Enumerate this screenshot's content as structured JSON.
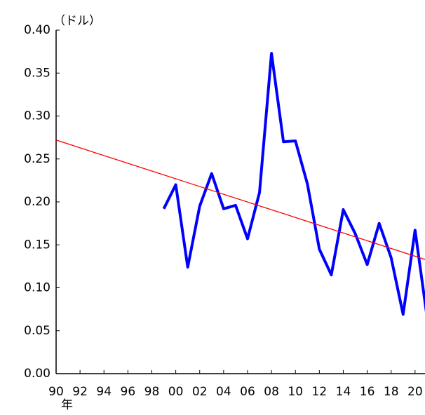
{
  "chart_data": {
    "type": "line",
    "y_unit": "（ドル）",
    "x_unit": "年",
    "xlim": [
      1990,
      2020.83
    ],
    "ylim": [
      0,
      0.4
    ],
    "yticks": [
      {
        "value": 0,
        "label": "0.00"
      },
      {
        "value": 0.05,
        "label": "0.05"
      },
      {
        "value": 0.1,
        "label": "0.10"
      },
      {
        "value": 0.15,
        "label": "0.15"
      },
      {
        "value": 0.2,
        "label": "0.20"
      },
      {
        "value": 0.25,
        "label": "0.25"
      },
      {
        "value": 0.3,
        "label": "0.30"
      },
      {
        "value": 0.35,
        "label": "0.35"
      },
      {
        "value": 0.4,
        "label": "0.40"
      }
    ],
    "xticks": [
      {
        "value": 1990,
        "label": "90"
      },
      {
        "value": 1992,
        "label": "92"
      },
      {
        "value": 1994,
        "label": "94"
      },
      {
        "value": 1996,
        "label": "96"
      },
      {
        "value": 1998,
        "label": "98"
      },
      {
        "value": 2000,
        "label": "00"
      },
      {
        "value": 2002,
        "label": "02"
      },
      {
        "value": 2004,
        "label": "04"
      },
      {
        "value": 2006,
        "label": "06"
      },
      {
        "value": 2008,
        "label": "08"
      },
      {
        "value": 2010,
        "label": "10"
      },
      {
        "value": 2012,
        "label": "12"
      },
      {
        "value": 2014,
        "label": "14"
      },
      {
        "value": 2016,
        "label": "16"
      },
      {
        "value": 2018,
        "label": "18"
      },
      {
        "value": 2020,
        "label": "20"
      }
    ],
    "grid": false,
    "series": [
      {
        "color": "#0000ff",
        "width": 4,
        "x": [
          1999,
          2000,
          2001,
          2002,
          2003,
          2004,
          2005,
          2006,
          2007,
          2008,
          2009,
          2010,
          2011,
          2012,
          2013,
          2014,
          2015,
          2016,
          2017,
          2018,
          2019,
          2020,
          2021
        ],
        "values": [
          0.192,
          0.22,
          0.124,
          0.195,
          0.233,
          0.192,
          0.196,
          0.157,
          0.211,
          0.373,
          0.27,
          0.271,
          0.221,
          0.145,
          0.115,
          0.191,
          0.163,
          0.127,
          0.175,
          0.135,
          0.069,
          0.167,
          0.066
        ]
      },
      {
        "color": "#ff0000",
        "width": 1.3,
        "x": [
          1990,
          2020.83
        ],
        "values": [
          0.272,
          0.133
        ]
      }
    ]
  }
}
